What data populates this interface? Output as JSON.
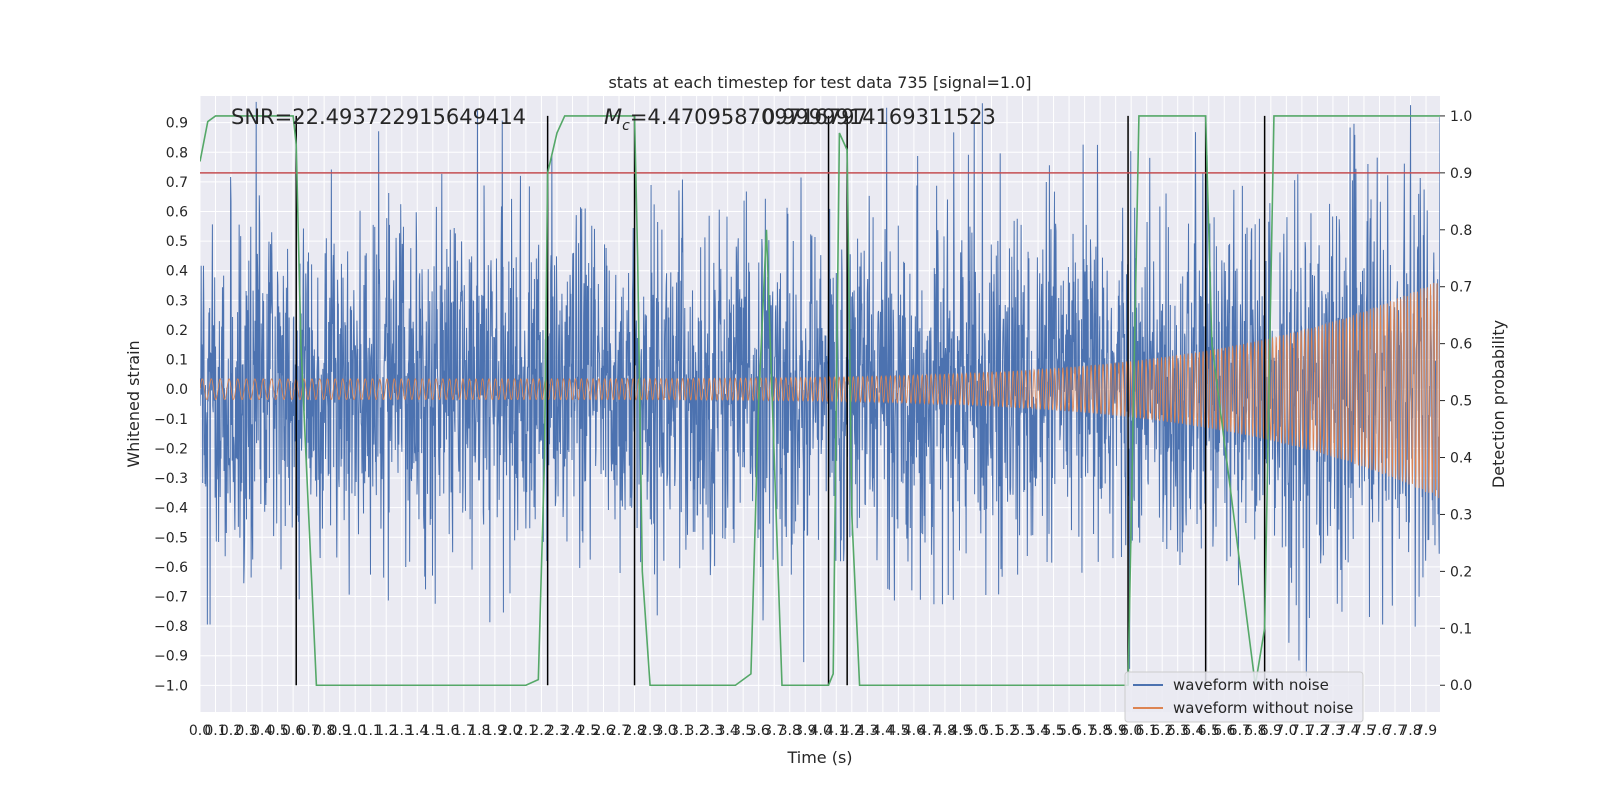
{
  "chart_data": {
    "type": "line",
    "title": "stats at each timestep for test data 735 [signal=1.0]",
    "xlabel": "Time (s)",
    "ylabel": "Whitened strain",
    "y2label": "Detection probability",
    "xlim": [
      0.0,
      7.99
    ],
    "ylim": [
      -1.09,
      0.99
    ],
    "y2lim": [
      -0.047,
      1.035
    ],
    "xticks": [
      "0.0",
      "0.1",
      "0.2",
      "0.3",
      "0.4",
      "0.5",
      "0.6",
      "0.7",
      "0.8",
      "0.9",
      "1.0",
      "1.1",
      "1.2",
      "1.3",
      "1.4",
      "1.5",
      "1.6",
      "1.7",
      "1.8",
      "1.9",
      "2.0",
      "2.1",
      "2.2",
      "2.3",
      "2.4",
      "2.5",
      "2.6",
      "2.7",
      "2.8",
      "2.9",
      "3.0",
      "3.1",
      "3.2",
      "3.3",
      "3.4",
      "3.5",
      "3.6",
      "3.7",
      "3.8",
      "3.9",
      "4.0",
      "4.1",
      "4.2",
      "4.3",
      "4.4",
      "4.5",
      "4.6",
      "4.7",
      "4.8",
      "4.9",
      "5.0",
      "5.1",
      "5.2",
      "5.3",
      "5.4",
      "5.5",
      "5.6",
      "5.7",
      "5.8",
      "5.9",
      "6.0",
      "6.1",
      "6.2",
      "6.3",
      "6.4",
      "6.5",
      "6.6",
      "6.7",
      "6.8",
      "6.9",
      "7.0",
      "7.1",
      "7.2",
      "7.3",
      "7.4",
      "7.5",
      "7.6",
      "7.7",
      "7.8",
      "7.9"
    ],
    "yticks": [
      "0.9",
      "0.8",
      "0.7",
      "0.6",
      "0.5",
      "0.4",
      "0.3",
      "0.2",
      "0.1",
      "0.0",
      "−0.1",
      "−0.2",
      "−0.3",
      "−0.4",
      "−0.5",
      "−0.6",
      "−0.7",
      "−0.8",
      "−0.9",
      "−1.0"
    ],
    "y2ticks": [
      "1.0",
      "0.9",
      "0.8",
      "0.7",
      "0.6",
      "0.5",
      "0.4",
      "0.3",
      "0.2",
      "0.1",
      "0.0"
    ],
    "annotations": {
      "snr": "SNR=22.493722915649414",
      "mc": "M_c=4.470958709716797",
      "overlap": "0.9999914169311523"
    },
    "threshold": 0.9,
    "threshold_color": "#c44e52",
    "event_times": [
      0.62,
      2.24,
      2.8,
      4.05,
      4.17,
      5.98,
      6.48,
      6.86
    ],
    "series": [
      {
        "name": "waveform with noise",
        "color": "#4c72b0",
        "noise_amplitude": 0.3
      },
      {
        "name": "waveform without noise",
        "color": "#dd8452",
        "start_amplitude": 0.035,
        "end_amplitude": 0.37
      },
      {
        "name": "Detection probability",
        "color": "#55a868",
        "axis": "right",
        "x": [
          0.0,
          0.05,
          0.1,
          0.6,
          0.62,
          0.65,
          0.75,
          2.1,
          2.18,
          2.22,
          2.24,
          2.3,
          2.35,
          2.8,
          2.82,
          2.85,
          2.9,
          3.45,
          3.55,
          3.6,
          3.65,
          3.75,
          4.05,
          4.08,
          4.12,
          4.17,
          4.2,
          4.25,
          5.98,
          6.05,
          6.48,
          6.52,
          6.8,
          6.86,
          6.92,
          7.99
        ],
        "y": [
          0.92,
          0.99,
          1.0,
          1.0,
          0.95,
          0.6,
          0.0,
          0.0,
          0.01,
          0.4,
          0.9,
          0.97,
          1.0,
          1.0,
          0.75,
          0.2,
          0.0,
          0.0,
          0.02,
          0.5,
          0.8,
          0.0,
          0.0,
          0.02,
          0.97,
          0.94,
          0.3,
          0.0,
          0.0,
          1.0,
          1.0,
          0.6,
          0.0,
          0.1,
          1.0,
          1.0
        ]
      }
    ],
    "legend": {
      "position": "lower-right",
      "entries": [
        "waveform with noise",
        "waveform without noise"
      ]
    }
  }
}
